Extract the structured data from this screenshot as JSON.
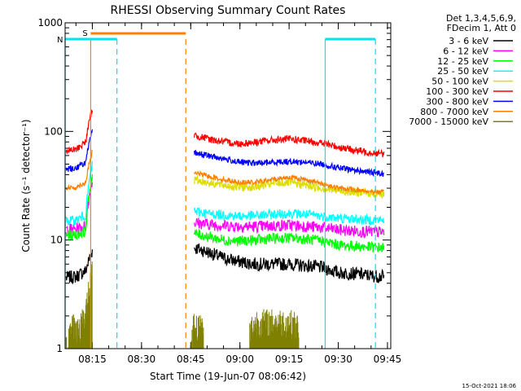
{
  "chart_data": {
    "type": "line",
    "title": "RHESSI Observing Summary Count Rates",
    "xlabel": "Start Time (19-Jun-07 08:06:42)",
    "ylabel": "Count Rate (s⁻¹ detector⁻¹)",
    "yscale": "log",
    "ylim": [
      1,
      1000
    ],
    "xlim": [
      "08:06:42",
      "09:46:00"
    ],
    "x_ticks": [
      "08:15",
      "08:30",
      "08:45",
      "09:00",
      "09:15",
      "09:30",
      "09:45"
    ],
    "y_ticks": [
      "1",
      "10",
      "100",
      "1000"
    ],
    "legend_header": [
      "Det 1,3,4,5,6,9,",
      "FDecim 1, Att 0"
    ],
    "legend_position": "right",
    "footer": "15-Oct-2021 18:06",
    "flags": [
      {
        "label": "S",
        "color": "#ff8000",
        "start": "08:14:30",
        "end": "08:43:30",
        "line_style": "dashed",
        "row": 1
      },
      {
        "label": "N",
        "color": "#00e5ee",
        "start": "08:06:42",
        "end": "08:22:30",
        "line_style": "dashed",
        "row": 2
      },
      {
        "label": "",
        "color": "#00e5ee",
        "start": "09:26:00",
        "end": "09:41:20",
        "line_style": "dashed",
        "row": 2
      }
    ],
    "markers": [
      {
        "time": "08:14:30",
        "color": "#ff8000",
        "style": "solid"
      },
      {
        "time": "08:06:42",
        "color": "#00e5ee",
        "style": "solid"
      },
      {
        "time": "08:22:30",
        "color": "#00e5ee",
        "style": "dashed"
      },
      {
        "time": "08:43:30",
        "color": "#ff8000",
        "style": "dashed"
      },
      {
        "time": "09:26:00",
        "color": "#00e5ee",
        "style": "solid"
      },
      {
        "time": "09:41:20",
        "color": "#00e5ee",
        "style": "dashed"
      }
    ],
    "data_gap": [
      "08:15:00",
      "08:46:00"
    ],
    "series": [
      {
        "name": "3 - 6 keV",
        "color": "#000000",
        "x": [
          "08:07",
          "08:10",
          "08:13",
          "08:15",
          "08:46",
          "08:50",
          "08:55",
          "09:00",
          "09:05",
          "09:10",
          "09:15",
          "09:20",
          "09:25",
          "09:30",
          "09:35",
          "09:40",
          "09:44"
        ],
        "y": [
          4.5,
          4.6,
          5.2,
          8.0,
          8.5,
          7.8,
          6.8,
          6.3,
          6.0,
          6.0,
          6.0,
          5.8,
          5.6,
          5.0,
          4.9,
          4.7,
          4.6
        ]
      },
      {
        "name": "6 - 12 keV",
        "color": "#ff00ff",
        "x": [
          "08:07",
          "08:10",
          "08:13",
          "08:15",
          "08:46",
          "08:50",
          "08:55",
          "09:00",
          "09:05",
          "09:10",
          "09:15",
          "09:20",
          "09:25",
          "09:30",
          "09:35",
          "09:40",
          "09:44"
        ],
        "y": [
          12.5,
          12.6,
          13.5,
          35,
          14.5,
          14.0,
          13.6,
          13.4,
          13.3,
          13.5,
          13.7,
          13.4,
          13.0,
          12.4,
          12.1,
          11.9,
          11.8
        ]
      },
      {
        "name": "12 - 25 keV",
        "color": "#00ff00",
        "x": [
          "08:07",
          "08:10",
          "08:13",
          "08:15",
          "08:46",
          "08:50",
          "08:55",
          "09:00",
          "09:05",
          "09:10",
          "09:15",
          "09:20",
          "09:25",
          "09:30",
          "09:35",
          "09:40",
          "09:44"
        ],
        "y": [
          11.0,
          11.2,
          12.0,
          40,
          11.5,
          10.8,
          10.0,
          9.8,
          10.0,
          10.3,
          10.5,
          10.2,
          9.8,
          9.0,
          8.8,
          8.6,
          8.5
        ]
      },
      {
        "name": "25 - 50 keV",
        "color": "#00ffff",
        "x": [
          "08:07",
          "08:10",
          "08:13",
          "08:15",
          "08:46",
          "08:50",
          "08:55",
          "09:00",
          "09:05",
          "09:10",
          "09:15",
          "09:20",
          "09:25",
          "09:30",
          "09:35",
          "09:40",
          "09:44"
        ],
        "y": [
          15.0,
          15.2,
          17.0,
          50,
          18.5,
          17.5,
          17.0,
          16.6,
          16.8,
          17.2,
          17.6,
          17.2,
          16.6,
          15.9,
          15.6,
          15.3,
          15.2
        ]
      },
      {
        "name": "50 - 100 keV",
        "color": "#dddd00",
        "x": [
          "08:46",
          "08:50",
          "08:55",
          "09:00",
          "09:05",
          "09:10",
          "09:15",
          "09:20",
          "09:25",
          "09:30",
          "09:35",
          "09:40",
          "09:44"
        ],
        "y": [
          36,
          34,
          32,
          30.5,
          31,
          33,
          34,
          32,
          30,
          28.5,
          27.5,
          27,
          26.5
        ]
      },
      {
        "name": "100 - 300 keV",
        "color": "#ff0000",
        "x": [
          "08:07",
          "08:10",
          "08:13",
          "08:15",
          "08:46",
          "08:50",
          "08:55",
          "09:00",
          "09:05",
          "09:10",
          "09:15",
          "09:20",
          "09:25",
          "09:30",
          "09:35",
          "09:40",
          "09:44"
        ],
        "y": [
          66,
          68,
          80,
          160,
          92,
          86,
          80,
          77,
          80,
          83,
          85,
          82,
          78,
          72,
          67,
          64,
          62
        ]
      },
      {
        "name": "300 - 800 keV",
        "color": "#0000ff",
        "x": [
          "08:07",
          "08:10",
          "08:13",
          "08:15",
          "08:46",
          "08:50",
          "08:55",
          "09:00",
          "09:05",
          "09:10",
          "09:15",
          "09:20",
          "09:25",
          "09:30",
          "09:35",
          "09:40",
          "09:44"
        ],
        "y": [
          45,
          46,
          52,
          100,
          64,
          60,
          56,
          52,
          51,
          52,
          53,
          52,
          50,
          46,
          44,
          42,
          41
        ]
      },
      {
        "name": "800 - 7000 keV",
        "color": "#ff8000",
        "x": [
          "08:07",
          "08:10",
          "08:13",
          "08:15",
          "08:46",
          "08:50",
          "08:55",
          "09:00",
          "09:05",
          "09:10",
          "09:15",
          "09:20",
          "09:25",
          "09:30",
          "09:35",
          "09:40",
          "09:44"
        ],
        "y": [
          30,
          30.5,
          34,
          65,
          42,
          39,
          36,
          34,
          34,
          36,
          38,
          36,
          33,
          30,
          29,
          28,
          27.5
        ]
      },
      {
        "name": "7000 - 15000 keV",
        "color": "#808000",
        "x": [
          "08:07",
          "08:09",
          "08:11",
          "08:13",
          "08:14",
          "08:15",
          "08:45",
          "08:46",
          "08:47",
          "08:49",
          "09:03",
          "09:05",
          "09:08",
          "09:12",
          "09:15",
          "09:18"
        ],
        "y": [
          1,
          1.8,
          1.5,
          2.2,
          3.5,
          6,
          1,
          1.8,
          1.6,
          1.8,
          1.5,
          1.8,
          1.8,
          1.8,
          1.8,
          1.6
        ]
      }
    ]
  }
}
